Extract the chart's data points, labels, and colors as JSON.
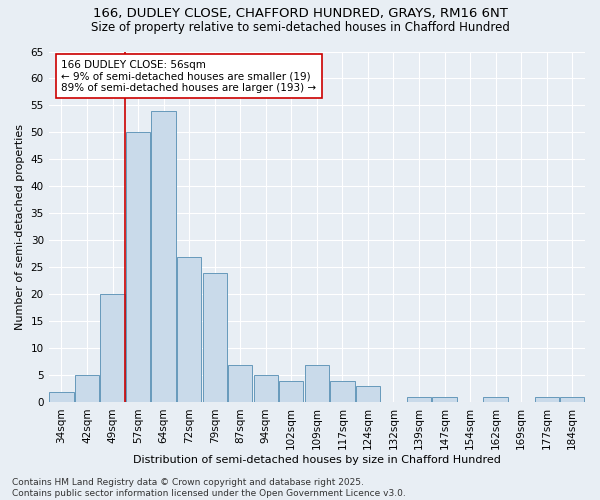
{
  "title1": "166, DUDLEY CLOSE, CHAFFORD HUNDRED, GRAYS, RM16 6NT",
  "title2": "Size of property relative to semi-detached houses in Chafford Hundred",
  "xlabel": "Distribution of semi-detached houses by size in Chafford Hundred",
  "ylabel": "Number of semi-detached properties",
  "categories": [
    "34sqm",
    "42sqm",
    "49sqm",
    "57sqm",
    "64sqm",
    "72sqm",
    "79sqm",
    "87sqm",
    "94sqm",
    "102sqm",
    "109sqm",
    "117sqm",
    "124sqm",
    "132sqm",
    "139sqm",
    "147sqm",
    "154sqm",
    "162sqm",
    "169sqm",
    "177sqm",
    "184sqm"
  ],
  "values": [
    2,
    5,
    20,
    50,
    54,
    27,
    24,
    7,
    5,
    4,
    7,
    4,
    3,
    0,
    1,
    1,
    0,
    1,
    0,
    1,
    1
  ],
  "bar_color": "#c9daea",
  "bar_edge_color": "#6699bb",
  "vline_x": 3.0,
  "vline_color": "#cc0000",
  "annotation_text": "166 DUDLEY CLOSE: 56sqm\n← 9% of semi-detached houses are smaller (19)\n89% of semi-detached houses are larger (193) →",
  "annotation_box_color": "#ffffff",
  "annotation_box_edge": "#cc0000",
  "ylim": [
    0,
    65
  ],
  "yticks": [
    0,
    5,
    10,
    15,
    20,
    25,
    30,
    35,
    40,
    45,
    50,
    55,
    60,
    65
  ],
  "background_color": "#e8eef4",
  "grid_color": "#ffffff",
  "footer": "Contains HM Land Registry data © Crown copyright and database right 2025.\nContains public sector information licensed under the Open Government Licence v3.0.",
  "title1_fontsize": 9.5,
  "title2_fontsize": 8.5,
  "xlabel_fontsize": 8,
  "ylabel_fontsize": 8,
  "tick_fontsize": 7.5,
  "annotation_fontsize": 7.5,
  "footer_fontsize": 6.5
}
